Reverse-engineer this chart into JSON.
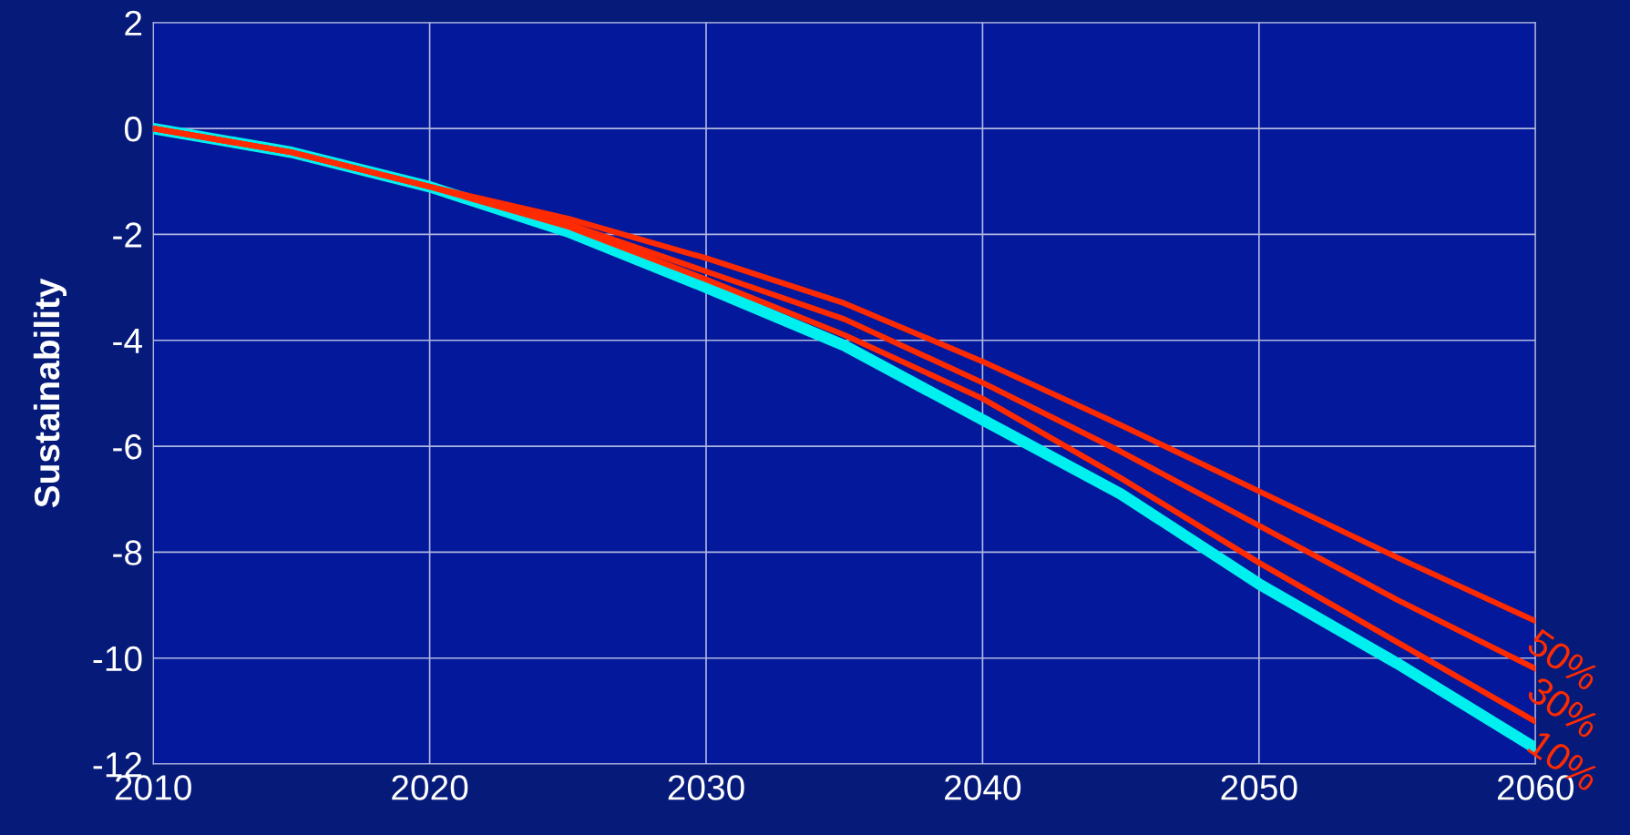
{
  "chart_data": {
    "type": "line",
    "ylabel": "Sustainability",
    "x": [
      2010,
      2015,
      2020,
      2025,
      2030,
      2035,
      2040,
      2045,
      2050,
      2055,
      2060
    ],
    "series": [
      {
        "color": "#00f0f0",
        "values": [
          0,
          -0.45,
          -1.1,
          -1.95,
          -3.0,
          -4.1,
          -5.5,
          -6.9,
          -8.6,
          -10.1,
          -11.7
        ]
      },
      {
        "name": "10%",
        "color": "#ff2a00",
        "values": [
          0,
          -0.45,
          -1.1,
          -1.85,
          -2.85,
          -3.9,
          -5.1,
          -6.6,
          -8.2,
          -9.7,
          -11.2
        ]
      },
      {
        "name": "30%",
        "color": "#ff2a00",
        "values": [
          0,
          -0.45,
          -1.1,
          -1.8,
          -2.7,
          -3.6,
          -4.8,
          -6.1,
          -7.5,
          -8.9,
          -10.2
        ]
      },
      {
        "name": "50%",
        "color": "#ff2a00",
        "values": [
          0,
          -0.45,
          -1.1,
          -1.7,
          -2.45,
          -3.3,
          -4.4,
          -5.6,
          -6.85,
          -8.1,
          -9.3
        ]
      }
    ],
    "xlim": [
      2010,
      2060
    ],
    "xticks": [
      2010,
      2020,
      2030,
      2040,
      2050,
      2060
    ],
    "ylim": [
      -12,
      2
    ],
    "yticks": [
      -12,
      -10,
      -8,
      -6,
      -4,
      -2,
      0,
      2
    ],
    "grid": true,
    "legend": false,
    "marker": "none",
    "line_style": "solid"
  }
}
